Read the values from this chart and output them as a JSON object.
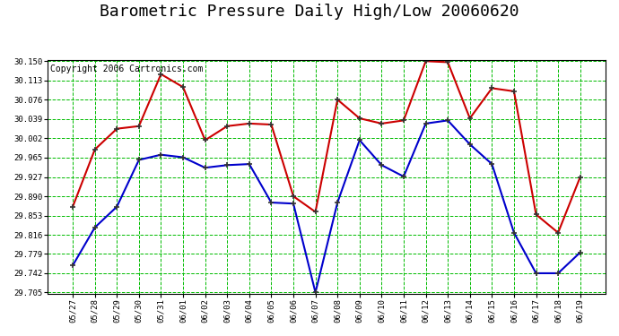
{
  "title": "Barometric Pressure Daily High/Low 20060620",
  "copyright": "Copyright 2006 Cartronics.com",
  "dates": [
    "05/27",
    "05/28",
    "05/29",
    "05/30",
    "05/31",
    "06/01",
    "06/02",
    "06/03",
    "06/04",
    "06/05",
    "06/06",
    "06/07",
    "06/08",
    "06/09",
    "06/10",
    "06/11",
    "06/12",
    "06/13",
    "06/14",
    "06/15",
    "06/16",
    "06/17",
    "06/18",
    "06/19"
  ],
  "high_values": [
    29.87,
    29.98,
    30.02,
    30.025,
    30.125,
    30.1,
    29.998,
    30.025,
    30.03,
    30.028,
    29.89,
    29.86,
    30.076,
    30.04,
    30.03,
    30.036,
    30.15,
    30.148,
    30.04,
    30.098,
    30.092,
    29.855,
    29.82,
    29.927
  ],
  "low_values": [
    29.757,
    29.83,
    29.87,
    29.96,
    29.97,
    29.965,
    29.945,
    29.95,
    29.952,
    29.878,
    29.876,
    29.705,
    29.878,
    29.998,
    29.95,
    29.928,
    30.03,
    30.036,
    29.99,
    29.952,
    29.82,
    29.742,
    29.742,
    29.782
  ],
  "ylim_min": 29.705,
  "ylim_max": 30.15,
  "ytick_values": [
    29.705,
    29.742,
    29.779,
    29.816,
    29.853,
    29.89,
    29.927,
    29.965,
    30.002,
    30.039,
    30.076,
    30.113,
    30.15
  ],
  "fig_bg_color": "#ffffff",
  "plot_bg_color": "#ffffff",
  "grid_color": "#00bb00",
  "high_color": "#cc0000",
  "low_color": "#0000cc",
  "title_fontsize": 13,
  "copyright_fontsize": 7,
  "marker_edge_color": "#333333"
}
